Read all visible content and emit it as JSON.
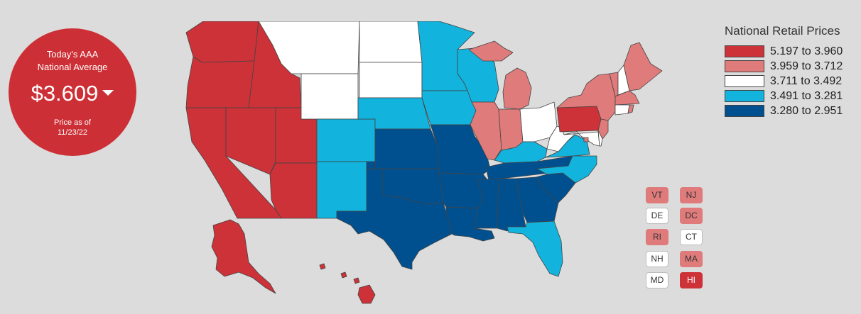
{
  "badge": {
    "line1": "Today's AAA",
    "line2": "National Average",
    "price": "$3.609",
    "asof1": "Price as of",
    "asof2": "11/23/22"
  },
  "legend": {
    "title": "National Retail Prices",
    "items": [
      {
        "label": "5.197 to 3.960",
        "color": "#cc3238"
      },
      {
        "label": "3.959 to 3.712",
        "color": "#e07b7b"
      },
      {
        "label": "3.711 to 3.492",
        "color": "#ffffff"
      },
      {
        "label": "3.491 to 3.281",
        "color": "#12b3dc"
      },
      {
        "label": "3.280 to 2.951",
        "color": "#00508f"
      }
    ]
  },
  "small_states": [
    {
      "abbr": "VT",
      "tier": 1
    },
    {
      "abbr": "NJ",
      "tier": 1
    },
    {
      "abbr": "DE",
      "tier": 2
    },
    {
      "abbr": "DC",
      "tier": 1
    },
    {
      "abbr": "RI",
      "tier": 1
    },
    {
      "abbr": "CT",
      "tier": 2
    },
    {
      "abbr": "NH",
      "tier": 2
    },
    {
      "abbr": "MA",
      "tier": 1
    },
    {
      "abbr": "MD",
      "tier": 2
    },
    {
      "abbr": "HI",
      "tier": 0
    }
  ],
  "state_tiers": {
    "WA": 0,
    "OR": 0,
    "CA": 0,
    "NV": 0,
    "ID": 0,
    "UT": 0,
    "AZ": 0,
    "AK": 0,
    "HI": 0,
    "PA": 0,
    "MI": 1,
    "IL": 1,
    "IN": 1,
    "NY": 1,
    "ME": 1,
    "VT": 1,
    "MA": 1,
    "NJ": 1,
    "RI": 1,
    "DC": 1,
    "MT": 2,
    "WY": 2,
    "ND": 2,
    "SD": 2,
    "OH": 2,
    "WV": 2,
    "NH": 2,
    "CT": 2,
    "DE": 2,
    "MD": 2,
    "CO": 3,
    "NM": 3,
    "NE": 3,
    "MN": 3,
    "IA": 3,
    "WI": 3,
    "KY": 3,
    "VA": 3,
    "NC": 3,
    "FL": 3,
    "TX": 4,
    "OK": 4,
    "KS": 4,
    "MO": 4,
    "AR": 4,
    "LA": 4,
    "MS": 4,
    "AL": 4,
    "GA": 4,
    "SC": 4,
    "TN": 4
  }
}
